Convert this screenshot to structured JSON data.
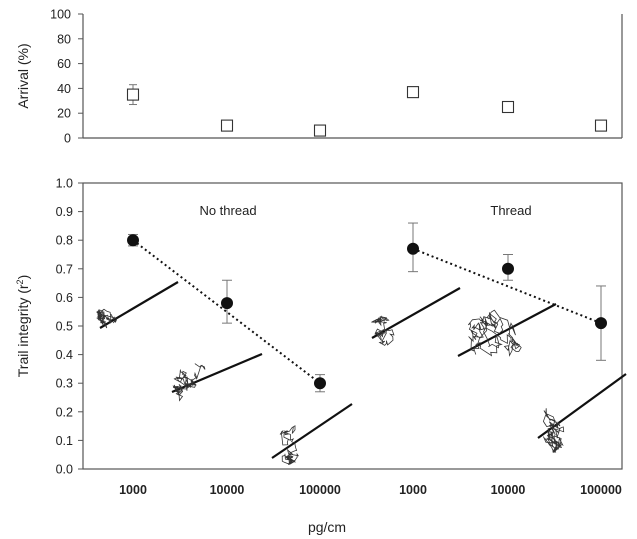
{
  "chart_data": [
    {
      "type": "scatter",
      "ylabel": "Arrival (%)",
      "ylim": [
        0,
        100
      ],
      "yticks": [
        0,
        20,
        40,
        60,
        80,
        100
      ],
      "marker": "open-square",
      "series": [
        {
          "points": [
            {
              "x": "1000",
              "y": 35,
              "err_low": 27,
              "err_high": 43
            },
            {
              "x": "10000",
              "y": 10,
              "err_low": 8,
              "err_high": 12
            },
            {
              "x": "100000",
              "y": 6,
              "err_low": 5,
              "err_high": 7
            },
            {
              "x": "1000",
              "y": 37,
              "err_low": 33,
              "err_high": 41
            },
            {
              "x": "10000",
              "y": 25,
              "err_low": 23,
              "err_high": 27
            },
            {
              "x": "100000",
              "y": 10,
              "err_low": 9,
              "err_high": 11
            }
          ]
        }
      ]
    },
    {
      "type": "scatter",
      "ylabel_main": "Trail integrity (r",
      "ylabel_sup": "2",
      "ylabel_end": ")",
      "xlabel": "pg/cm",
      "ylim": [
        0,
        1
      ],
      "yticks": [
        "0.0",
        "0.1",
        "0.2",
        "0.3",
        "0.4",
        "0.5",
        "0.6",
        "0.7",
        "0.8",
        "0.9",
        "1.0"
      ],
      "categories": [
        "1000",
        "10000",
        "100000",
        "1000",
        "10000",
        "100000"
      ],
      "annotations": [
        "No thread",
        "Thread"
      ],
      "marker": "filled-circle",
      "trend_lines": "dotted line from 1000 to 100000 within each group",
      "series": [
        {
          "points": [
            {
              "x": "1000",
              "y": 0.8,
              "err_low": 0.78,
              "err_high": 0.82
            },
            {
              "x": "10000",
              "y": 0.58,
              "err_low": 0.51,
              "err_high": 0.66
            },
            {
              "x": "100000",
              "y": 0.3,
              "err_low": 0.27,
              "err_high": 0.33
            },
            {
              "x": "1000",
              "y": 0.77,
              "err_low": 0.69,
              "err_high": 0.86
            },
            {
              "x": "10000",
              "y": 0.7,
              "err_low": 0.66,
              "err_high": 0.75
            },
            {
              "x": "100000",
              "y": 0.51,
              "err_low": 0.38,
              "err_high": 0.64
            }
          ]
        }
      ],
      "track_insets": 6
    }
  ]
}
